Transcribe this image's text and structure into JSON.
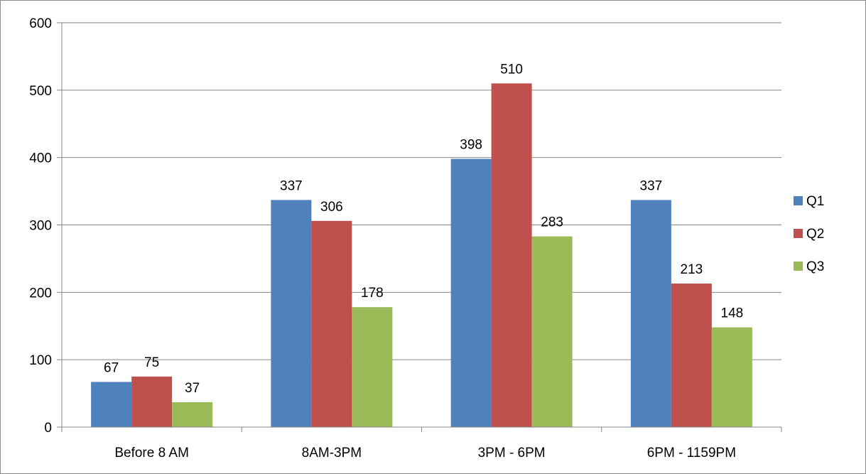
{
  "chart_data": {
    "type": "bar",
    "categories": [
      "Before 8 AM",
      "8AM-3PM",
      "3PM - 6PM",
      "6PM - 1159PM"
    ],
    "series": [
      {
        "name": "Q1",
        "color": "#4f81bd",
        "values": [
          67,
          337,
          398,
          337
        ]
      },
      {
        "name": "Q2",
        "color": "#c0504d",
        "values": [
          75,
          306,
          510,
          213
        ]
      },
      {
        "name": "Q3",
        "color": "#9bbb59",
        "values": [
          37,
          178,
          283,
          148
        ]
      }
    ],
    "data_labels": [
      [
        "67",
        "337",
        "398",
        "337"
      ],
      [
        "75",
        "306",
        "510",
        "213"
      ],
      [
        "37",
        "178",
        "283",
        "148"
      ]
    ],
    "title": "",
    "xlabel": "",
    "ylabel": "",
    "ylim": [
      0,
      600
    ],
    "yticks": [
      0,
      100,
      200,
      300,
      400,
      500,
      600
    ],
    "grid": true,
    "legend_position": "right"
  }
}
